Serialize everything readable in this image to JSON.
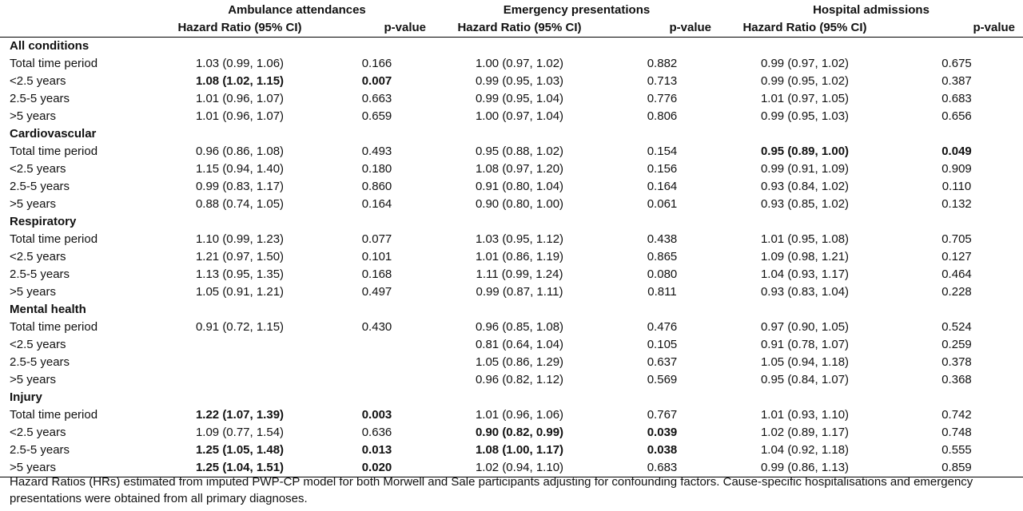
{
  "groups": [
    "Ambulance attendances",
    "Emergency presentations",
    "Hospital admissions"
  ],
  "subheaders": {
    "hr": "Hazard Ratio (95% CI)",
    "p": "p-value"
  },
  "sections": [
    {
      "title": "All conditions",
      "rows": [
        {
          "label": "Total time period",
          "cells": [
            [
              "1.03 (0.99, 1.06)",
              false
            ],
            [
              "0.166",
              false
            ],
            [
              "1.00 (0.97, 1.02)",
              false
            ],
            [
              "0.882",
              false
            ],
            [
              "0.99 (0.97, 1.02)",
              false
            ],
            [
              "0.675",
              false
            ]
          ]
        },
        {
          "label": "<2.5 years",
          "cells": [
            [
              "1.08 (1.02, 1.15)",
              true
            ],
            [
              "0.007",
              true
            ],
            [
              "0.99 (0.95, 1.03)",
              false
            ],
            [
              "0.713",
              false
            ],
            [
              "0.99 (0.95, 1.02)",
              false
            ],
            [
              "0.387",
              false
            ]
          ]
        },
        {
          "label": "2.5-5 years",
          "cells": [
            [
              "1.01 (0.96, 1.07)",
              false
            ],
            [
              "0.663",
              false
            ],
            [
              "0.99 (0.95, 1.04)",
              false
            ],
            [
              "0.776",
              false
            ],
            [
              "1.01 (0.97, 1.05)",
              false
            ],
            [
              "0.683",
              false
            ]
          ]
        },
        {
          "label": ">5 years",
          "cells": [
            [
              "1.01 (0.96, 1.07)",
              false
            ],
            [
              "0.659",
              false
            ],
            [
              "1.00 (0.97, 1.04)",
              false
            ],
            [
              "0.806",
              false
            ],
            [
              "0.99 (0.95, 1.03)",
              false
            ],
            [
              "0.656",
              false
            ]
          ]
        }
      ]
    },
    {
      "title": "Cardiovascular",
      "rows": [
        {
          "label": "Total time period",
          "cells": [
            [
              "0.96 (0.86, 1.08)",
              false
            ],
            [
              "0.493",
              false
            ],
            [
              "0.95 (0.88, 1.02)",
              false
            ],
            [
              "0.154",
              false
            ],
            [
              "0.95 (0.89, 1.00)",
              true
            ],
            [
              "0.049",
              true
            ]
          ]
        },
        {
          "label": "<2.5 years",
          "cells": [
            [
              "1.15 (0.94, 1.40)",
              false
            ],
            [
              "0.180",
              false
            ],
            [
              "1.08 (0.97, 1.20)",
              false
            ],
            [
              "0.156",
              false
            ],
            [
              "0.99 (0.91, 1.09)",
              false
            ],
            [
              "0.909",
              false
            ]
          ]
        },
        {
          "label": "2.5-5 years",
          "cells": [
            [
              "0.99 (0.83, 1.17)",
              false
            ],
            [
              "0.860",
              false
            ],
            [
              "0.91 (0.80, 1.04)",
              false
            ],
            [
              "0.164",
              false
            ],
            [
              "0.93 (0.84, 1.02)",
              false
            ],
            [
              "0.110",
              false
            ]
          ]
        },
        {
          "label": ">5 years",
          "cells": [
            [
              "0.88 (0.74, 1.05)",
              false
            ],
            [
              "0.164",
              false
            ],
            [
              "0.90 (0.80, 1.00)",
              false
            ],
            [
              "0.061",
              false
            ],
            [
              "0.93 (0.85, 1.02)",
              false
            ],
            [
              "0.132",
              false
            ]
          ]
        }
      ]
    },
    {
      "title": "Respiratory",
      "rows": [
        {
          "label": "Total time period",
          "cells": [
            [
              "1.10 (0.99, 1.23)",
              false
            ],
            [
              "0.077",
              false
            ],
            [
              "1.03 (0.95, 1.12)",
              false
            ],
            [
              "0.438",
              false
            ],
            [
              "1.01 (0.95, 1.08)",
              false
            ],
            [
              "0.705",
              false
            ]
          ]
        },
        {
          "label": "<2.5 years",
          "cells": [
            [
              "1.21 (0.97, 1.50)",
              false
            ],
            [
              "0.101",
              false
            ],
            [
              "1.01 (0.86, 1.19)",
              false
            ],
            [
              "0.865",
              false
            ],
            [
              "1.09 (0.98, 1.21)",
              false
            ],
            [
              "0.127",
              false
            ]
          ]
        },
        {
          "label": "2.5-5 years",
          "cells": [
            [
              "1.13 (0.95, 1.35)",
              false
            ],
            [
              "0.168",
              false
            ],
            [
              "1.11 (0.99, 1.24)",
              false
            ],
            [
              "0.080",
              false
            ],
            [
              "1.04 (0.93, 1.17)",
              false
            ],
            [
              "0.464",
              false
            ]
          ]
        },
        {
          "label": ">5 years",
          "cells": [
            [
              "1.05 (0.91, 1.21)",
              false
            ],
            [
              "0.497",
              false
            ],
            [
              "0.99 (0.87, 1.11)",
              false
            ],
            [
              "0.811",
              false
            ],
            [
              "0.93 (0.83, 1.04)",
              false
            ],
            [
              "0.228",
              false
            ]
          ]
        }
      ]
    },
    {
      "title": "Mental health",
      "rows": [
        {
          "label": "Total time period",
          "cells": [
            [
              "0.91 (0.72, 1.15)",
              false
            ],
            [
              "0.430",
              false
            ],
            [
              "0.96 (0.85, 1.08)",
              false
            ],
            [
              "0.476",
              false
            ],
            [
              "0.97 (0.90, 1.05)",
              false
            ],
            [
              "0.524",
              false
            ]
          ]
        },
        {
          "label": "<2.5 years",
          "cells": [
            [
              "",
              false
            ],
            [
              "",
              false
            ],
            [
              "0.81 (0.64, 1.04)",
              false
            ],
            [
              "0.105",
              false
            ],
            [
              "0.91 (0.78, 1.07)",
              false
            ],
            [
              "0.259",
              false
            ]
          ]
        },
        {
          "label": "2.5-5 years",
          "cells": [
            [
              "",
              false
            ],
            [
              "",
              false
            ],
            [
              "1.05 (0.86, 1.29)",
              false
            ],
            [
              "0.637",
              false
            ],
            [
              "1.05 (0.94, 1.18)",
              false
            ],
            [
              "0.378",
              false
            ]
          ]
        },
        {
          "label": ">5 years",
          "cells": [
            [
              "",
              false
            ],
            [
              "",
              false
            ],
            [
              "0.96 (0.82, 1.12)",
              false
            ],
            [
              "0.569",
              false
            ],
            [
              "0.95 (0.84, 1.07)",
              false
            ],
            [
              "0.368",
              false
            ]
          ]
        }
      ]
    },
    {
      "title": "Injury",
      "rows": [
        {
          "label": "Total time period",
          "cells": [
            [
              "1.22 (1.07, 1.39)",
              true
            ],
            [
              "0.003",
              true
            ],
            [
              "1.01 (0.96, 1.06)",
              false
            ],
            [
              "0.767",
              false
            ],
            [
              "1.01 (0.93, 1.10)",
              false
            ],
            [
              "0.742",
              false
            ]
          ]
        },
        {
          "label": "<2.5 years",
          "cells": [
            [
              "1.09 (0.77, 1.54)",
              false
            ],
            [
              "0.636",
              false
            ],
            [
              "0.90 (0.82, 0.99)",
              true
            ],
            [
              "0.039",
              true
            ],
            [
              "1.02 (0.89, 1.17)",
              false
            ],
            [
              "0.748",
              false
            ]
          ]
        },
        {
          "label": "2.5-5 years",
          "cells": [
            [
              "1.25 (1.05, 1.48)",
              true
            ],
            [
              "0.013",
              true
            ],
            [
              "1.08 (1.00, 1.17)",
              true
            ],
            [
              "0.038",
              true
            ],
            [
              "1.04 (0.92, 1.18)",
              false
            ],
            [
              "0.555",
              false
            ]
          ]
        },
        {
          "label": ">5 years",
          "cells": [
            [
              "1.25 (1.04, 1.51)",
              true
            ],
            [
              "0.020",
              true
            ],
            [
              "1.02 (0.94, 1.10)",
              false
            ],
            [
              "0.683",
              false
            ],
            [
              "0.99 (0.86, 1.13)",
              false
            ],
            [
              "0.859",
              false
            ]
          ]
        }
      ]
    }
  ],
  "footnote": "Hazard Ratios (HRs) estimated from imputed PWP-CP model for both Morwell and Sale participants adjusting for confounding factors. Cause-specific hospitalisations and emergency presentations were obtained from all primary diagnoses."
}
